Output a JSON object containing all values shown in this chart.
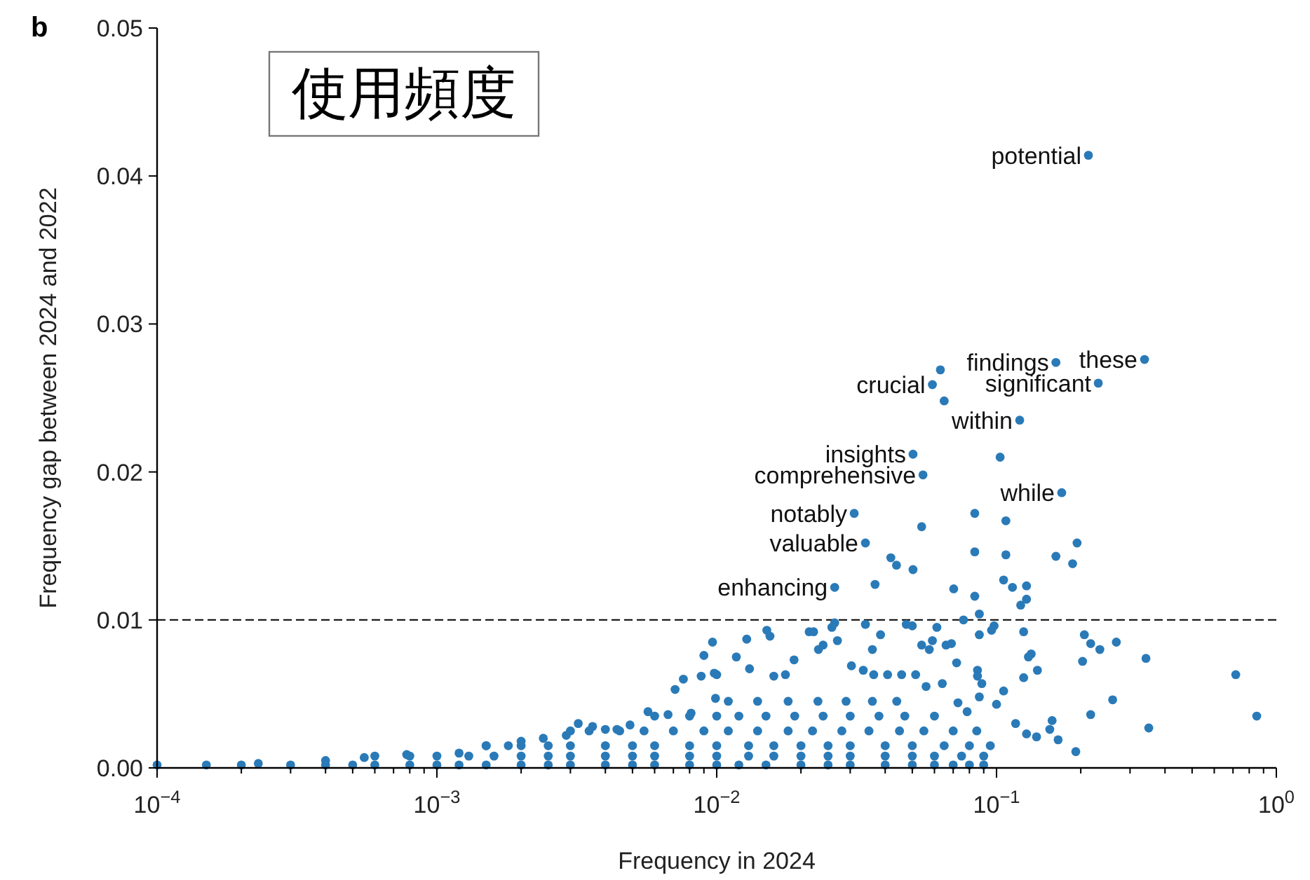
{
  "chart_data": {
    "type": "scatter",
    "title": "使用頻度",
    "xlabel": "Frequency in 2024",
    "ylabel": "Frequency gap between 2024 and 2022",
    "annotations": [
      "b",
      {
        "text": "potential",
        "x": 0.213,
        "y": 0.0414
      },
      {
        "text": "these",
        "x": 0.338,
        "y": 0.0276
      },
      {
        "text": "findings",
        "x": 0.163,
        "y": 0.0274
      },
      {
        "text": "significant",
        "x": 0.231,
        "y": 0.026
      },
      {
        "text": "crucial",
        "x": 0.059,
        "y": 0.0259
      },
      {
        "text": "within",
        "x": 0.121,
        "y": 0.0235
      },
      {
        "text": "insights",
        "x": 0.0503,
        "y": 0.0212
      },
      {
        "text": "comprehensive",
        "x": 0.0546,
        "y": 0.0198
      },
      {
        "text": "while",
        "x": 0.171,
        "y": 0.0186
      },
      {
        "text": "notably",
        "x": 0.031,
        "y": 0.0172
      },
      {
        "text": "valuable",
        "x": 0.034,
        "y": 0.0152
      },
      {
        "text": "enhancing",
        "x": 0.0264,
        "y": 0.0122
      }
    ],
    "log": "x",
    "xlim": [
      0.0001,
      1
    ],
    "ylim": [
      0,
      0.05
    ],
    "xticks": [
      {
        "value": 0.0001,
        "label": "10$^{−4}$"
      },
      {
        "value": 0.001,
        "label": "10$^{−3}$"
      },
      {
        "value": 0.01,
        "label": "10$^{−2}$"
      },
      {
        "value": 0.1,
        "label": "10$^{−1}$"
      },
      {
        "value": 1,
        "label": "10$^{0}$"
      }
    ],
    "yticks": [
      {
        "value": 0,
        "label": "0.00"
      },
      {
        "value": 0.01,
        "label": "0.01"
      },
      {
        "value": 0.02,
        "label": "0.02"
      },
      {
        "value": 0.03,
        "label": "0.03"
      },
      {
        "value": 0.04,
        "label": "0.04"
      },
      {
        "value": 0.05,
        "label": "0.05"
      }
    ],
    "ref_lines": [
      {
        "axis": "y",
        "value": 0.01,
        "color": "#000000",
        "line_style": "dashed"
      }
    ],
    "grid": false,
    "marker": "circle",
    "series": [
      {
        "color": "#2a7ab8",
        "x": [
          0.213,
          0.338,
          0.163,
          0.231,
          0.059,
          0.063,
          0.065,
          0.121,
          0.0503,
          0.103,
          0.0546,
          0.171,
          0.031,
          0.0836,
          0.054,
          0.108,
          0.034,
          0.0836,
          0.108,
          0.163,
          0.194,
          0.187,
          0.0419,
          0.0439,
          0.0503,
          0.0264,
          0.0368,
          0.106,
          0.114,
          0.128,
          0.0703,
          0.0836,
          0.122,
          0.128,
          0.206,
          0.217,
          0.234,
          0.268,
          0.203,
          0.342,
          0.716,
          0.26,
          0.217,
          0.851,
          0.35,
          0.158,
          0.155,
          0.128,
          0.139,
          0.166,
          0.192,
          0.117,
          0.106,
          0.14,
          0.125,
          0.133,
          0.13,
          0.125,
          0.096,
          0.098,
          0.0868,
          0.0868,
          0.0762,
          0.00966,
          0.009,
          0.01175,
          0.0128,
          0.0151,
          0.0155,
          0.0131,
          0.0189,
          0.0214,
          0.0222,
          0.0264,
          0.0258,
          0.027,
          0.0231,
          0.024,
          0.034,
          0.0385,
          0.036,
          0.0476,
          0.05,
          0.0612,
          0.054,
          0.0575,
          0.059,
          0.066,
          0.069,
          0.072,
          0.0855,
          0.0855,
          0.0886,
          0.0303,
          0.0334,
          0.0364,
          0.0408,
          0.0458,
          0.0514,
          0.0088,
          0.0076,
          0.01,
          0.0176,
          0.016,
          0.1,
          0.0868,
          0.0728,
          0.0785,
          0.064,
          0.056,
          0.0071,
          0.0098,
          0.0099,
          0.0081,
          0.00568,
          0.0067,
          0.0032,
          0.0036,
          0.004,
          0.0044,
          0.0049,
          0.0024,
          0.0029,
          0.0018,
          0.002,
          0.0015,
          0.0012,
          0.00078,
          0.00055,
          0.0004,
          0.00023,
          0.0001,
          0.00015,
          0.0002,
          0.0003,
          0.0004,
          0.0005,
          0.0006,
          0.0008,
          0.001,
          0.0012,
          0.0015,
          0.002,
          0.0025,
          0.003,
          0.004,
          0.005,
          0.006,
          0.008,
          0.01,
          0.012,
          0.015,
          0.02,
          0.025,
          0.03,
          0.04,
          0.05,
          0.06,
          0.07,
          0.08,
          0.09,
          0.0006,
          0.0008,
          0.001,
          0.0013,
          0.0016,
          0.002,
          0.0025,
          0.003,
          0.004,
          0.005,
          0.006,
          0.008,
          0.01,
          0.013,
          0.016,
          0.02,
          0.025,
          0.03,
          0.04,
          0.05,
          0.06,
          0.075,
          0.09,
          0.0015,
          0.002,
          0.0025,
          0.003,
          0.004,
          0.005,
          0.006,
          0.008,
          0.01,
          0.013,
          0.016,
          0.02,
          0.025,
          0.03,
          0.04,
          0.05,
          0.065,
          0.08,
          0.095,
          0.003,
          0.0035,
          0.0045,
          0.0055,
          0.007,
          0.009,
          0.011,
          0.014,
          0.018,
          0.022,
          0.028,
          0.035,
          0.045,
          0.055,
          0.07,
          0.085,
          0.006,
          0.008,
          0.01,
          0.012,
          0.015,
          0.019,
          0.024,
          0.03,
          0.038,
          0.047,
          0.06,
          0.011,
          0.014,
          0.018,
          0.023,
          0.029,
          0.036,
          0.044
        ],
        "values": [
          0.0414,
          0.0276,
          0.0274,
          0.026,
          0.0259,
          0.0269,
          0.0248,
          0.0235,
          0.0212,
          0.021,
          0.0198,
          0.0186,
          0.0172,
          0.0172,
          0.0163,
          0.0167,
          0.0152,
          0.0146,
          0.0144,
          0.0143,
          0.0152,
          0.0138,
          0.0142,
          0.0137,
          0.0134,
          0.0122,
          0.0124,
          0.0127,
          0.0122,
          0.0123,
          0.0121,
          0.0116,
          0.011,
          0.0114,
          0.009,
          0.0084,
          0.008,
          0.0085,
          0.0072,
          0.0074,
          0.0063,
          0.0046,
          0.0036,
          0.0035,
          0.0027,
          0.0032,
          0.0026,
          0.0023,
          0.0021,
          0.0019,
          0.0011,
          0.003,
          0.0052,
          0.0066,
          0.0061,
          0.0077,
          0.0075,
          0.0092,
          0.0093,
          0.0096,
          0.009,
          0.0104,
          0.01,
          0.0085,
          0.0076,
          0.0075,
          0.0087,
          0.0093,
          0.0089,
          0.0067,
          0.0073,
          0.0092,
          0.0092,
          0.0098,
          0.0095,
          0.0086,
          0.008,
          0.0083,
          0.0097,
          0.009,
          0.008,
          0.0097,
          0.0096,
          0.0095,
          0.0083,
          0.008,
          0.0086,
          0.0083,
          0.0084,
          0.0071,
          0.0066,
          0.0062,
          0.0057,
          0.0069,
          0.0066,
          0.0063,
          0.0063,
          0.0063,
          0.0063,
          0.0062,
          0.006,
          0.0063,
          0.0063,
          0.0062,
          0.0043,
          0.0048,
          0.0044,
          0.0038,
          0.0057,
          0.0055,
          0.0053,
          0.0064,
          0.0047,
          0.0037,
          0.0038,
          0.0036,
          0.003,
          0.0028,
          0.0026,
          0.0026,
          0.0029,
          0.002,
          0.0022,
          0.0015,
          0.0018,
          0.0015,
          0.001,
          0.0009,
          0.0007,
          0.0005,
          0.0003,
          0.0002,
          0.0002,
          0.0002,
          0.0002,
          0.0002,
          0.0002,
          0.0002,
          0.0002,
          0.0002,
          0.0002,
          0.0002,
          0.0002,
          0.0002,
          0.0002,
          0.0002,
          0.0002,
          0.0002,
          0.0002,
          0.0002,
          0.0002,
          0.0002,
          0.0002,
          0.0002,
          0.0002,
          0.0002,
          0.0002,
          0.0002,
          0.0002,
          0.0002,
          0.0002,
          0.0008,
          0.0008,
          0.0008,
          0.0008,
          0.0008,
          0.0008,
          0.0008,
          0.0008,
          0.0008,
          0.0008,
          0.0008,
          0.0008,
          0.0008,
          0.0008,
          0.0008,
          0.0008,
          0.0008,
          0.0008,
          0.0008,
          0.0008,
          0.0008,
          0.0008,
          0.0008,
          0.0015,
          0.0015,
          0.0015,
          0.0015,
          0.0015,
          0.0015,
          0.0015,
          0.0015,
          0.0015,
          0.0015,
          0.0015,
          0.0015,
          0.0015,
          0.0015,
          0.0015,
          0.0015,
          0.0015,
          0.0015,
          0.0015,
          0.0025,
          0.0025,
          0.0025,
          0.0025,
          0.0025,
          0.0025,
          0.0025,
          0.0025,
          0.0025,
          0.0025,
          0.0025,
          0.0025,
          0.0025,
          0.0025,
          0.0025,
          0.0025,
          0.0035,
          0.0035,
          0.0035,
          0.0035,
          0.0035,
          0.0035,
          0.0035,
          0.0035,
          0.0035,
          0.0035,
          0.0035,
          0.0045,
          0.0045,
          0.0045,
          0.0045,
          0.0045,
          0.0045,
          0.0045
        ]
      }
    ]
  }
}
